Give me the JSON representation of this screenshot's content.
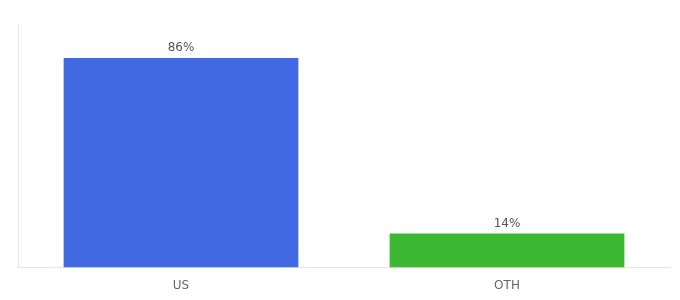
{
  "chart_data": {
    "type": "bar",
    "categories": [
      "US",
      "OTH"
    ],
    "values": [
      86,
      14
    ],
    "value_labels": [
      "86%",
      "14%"
    ],
    "data_labels": true,
    "colors": [
      "#4169e1",
      "#3cb832"
    ],
    "ylim": [
      0,
      100
    ],
    "tick_labels": "x",
    "grid": false
  }
}
